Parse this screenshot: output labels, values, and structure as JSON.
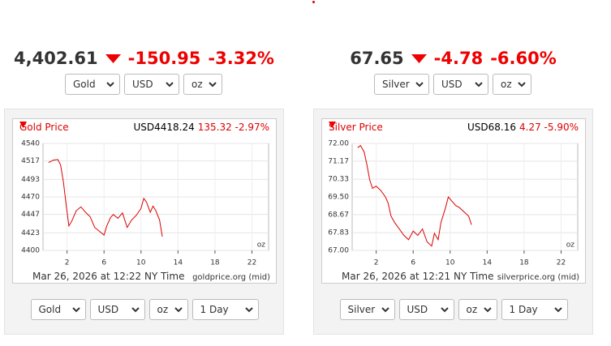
{
  "chart_data": [
    {
      "type": "line",
      "title": "Gold Price",
      "header_price": "USD4418.24",
      "header_change": "135.32 -2.97%",
      "unit": "oz",
      "footer_time": "Mar 26, 2026 at 12:22 NY Time",
      "footer_source": "goldprice.org (mid)",
      "x": [
        0,
        0.5,
        1,
        1.3,
        1.6,
        1.9,
        2.2,
        2.5,
        3,
        3.5,
        4,
        4.5,
        5,
        5.5,
        6,
        6.3,
        6.7,
        7,
        7.5,
        8,
        8.5,
        9,
        9.5,
        10,
        10.3,
        10.6,
        11,
        11.3,
        11.6,
        12,
        12.3
      ],
      "series": [
        {
          "color": "#dd0000",
          "values": [
            4515,
            4518,
            4519,
            4512,
            4490,
            4460,
            4432,
            4438,
            4452,
            4457,
            4450,
            4444,
            4430,
            4425,
            4420,
            4432,
            4443,
            4447,
            4442,
            4449,
            4430,
            4440,
            4446,
            4455,
            4468,
            4463,
            4450,
            4458,
            4452,
            4440,
            4418
          ]
        }
      ],
      "xlim": [
        -0.6,
        23.8
      ],
      "xticks": [
        2,
        6,
        10,
        14,
        18,
        22
      ],
      "ylim": [
        4400,
        4540
      ],
      "yticks": [
        4400,
        4423,
        4447,
        4470,
        4493,
        4517,
        4540
      ]
    },
    {
      "type": "line",
      "title": "Silver Price",
      "header_price": "USD68.16",
      "header_change": "4.27 -5.90%",
      "unit": "oz",
      "footer_time": "Mar 26, 2026 at 12:21 NY Time",
      "footer_source": "silverprice.org (mid)",
      "x": [
        0,
        0.3,
        0.7,
        1,
        1.3,
        1.6,
        2,
        2.5,
        3,
        3.3,
        3.6,
        4,
        4.5,
        5,
        5.5,
        6,
        6.5,
        7,
        7.5,
        8,
        8.3,
        8.7,
        9,
        9.5,
        9.8,
        10.2,
        10.6,
        11,
        11.5,
        12,
        12.3
      ],
      "series": [
        {
          "color": "#dd0000",
          "values": [
            71.8,
            71.9,
            71.6,
            71.0,
            70.3,
            69.9,
            70.0,
            69.8,
            69.5,
            69.2,
            68.6,
            68.3,
            68.0,
            67.7,
            67.5,
            67.9,
            67.7,
            68.0,
            67.4,
            67.2,
            67.8,
            67.5,
            68.3,
            69.0,
            69.5,
            69.3,
            69.1,
            69.0,
            68.8,
            68.6,
            68.2
          ]
        }
      ],
      "xlim": [
        -0.6,
        23.8
      ],
      "xticks": [
        2,
        6,
        10,
        14,
        18,
        22
      ],
      "ylim": [
        67,
        72
      ],
      "yticks": [
        {
          "value": 67,
          "label": "67.00"
        },
        67.83,
        68.67,
        {
          "value": 69.5,
          "label": "69.50"
        },
        70.33,
        71.17,
        {
          "value": 72,
          "label": "72.00"
        }
      ]
    }
  ],
  "widgets": [
    {
      "price": "4,402.61",
      "change": "-150.95",
      "change_pct": "-3.32%",
      "selects": [
        "Gold",
        "USD",
        "oz"
      ],
      "bottom_selects": [
        "Gold",
        "USD",
        "oz",
        "1 Day"
      ]
    },
    {
      "price": "67.65",
      "change": "-4.78",
      "change_pct": "-6.60%",
      "selects": [
        "Silver",
        "USD",
        "oz"
      ],
      "bottom_selects": [
        "Silver",
        "USD",
        "oz",
        "1 Day"
      ]
    }
  ]
}
